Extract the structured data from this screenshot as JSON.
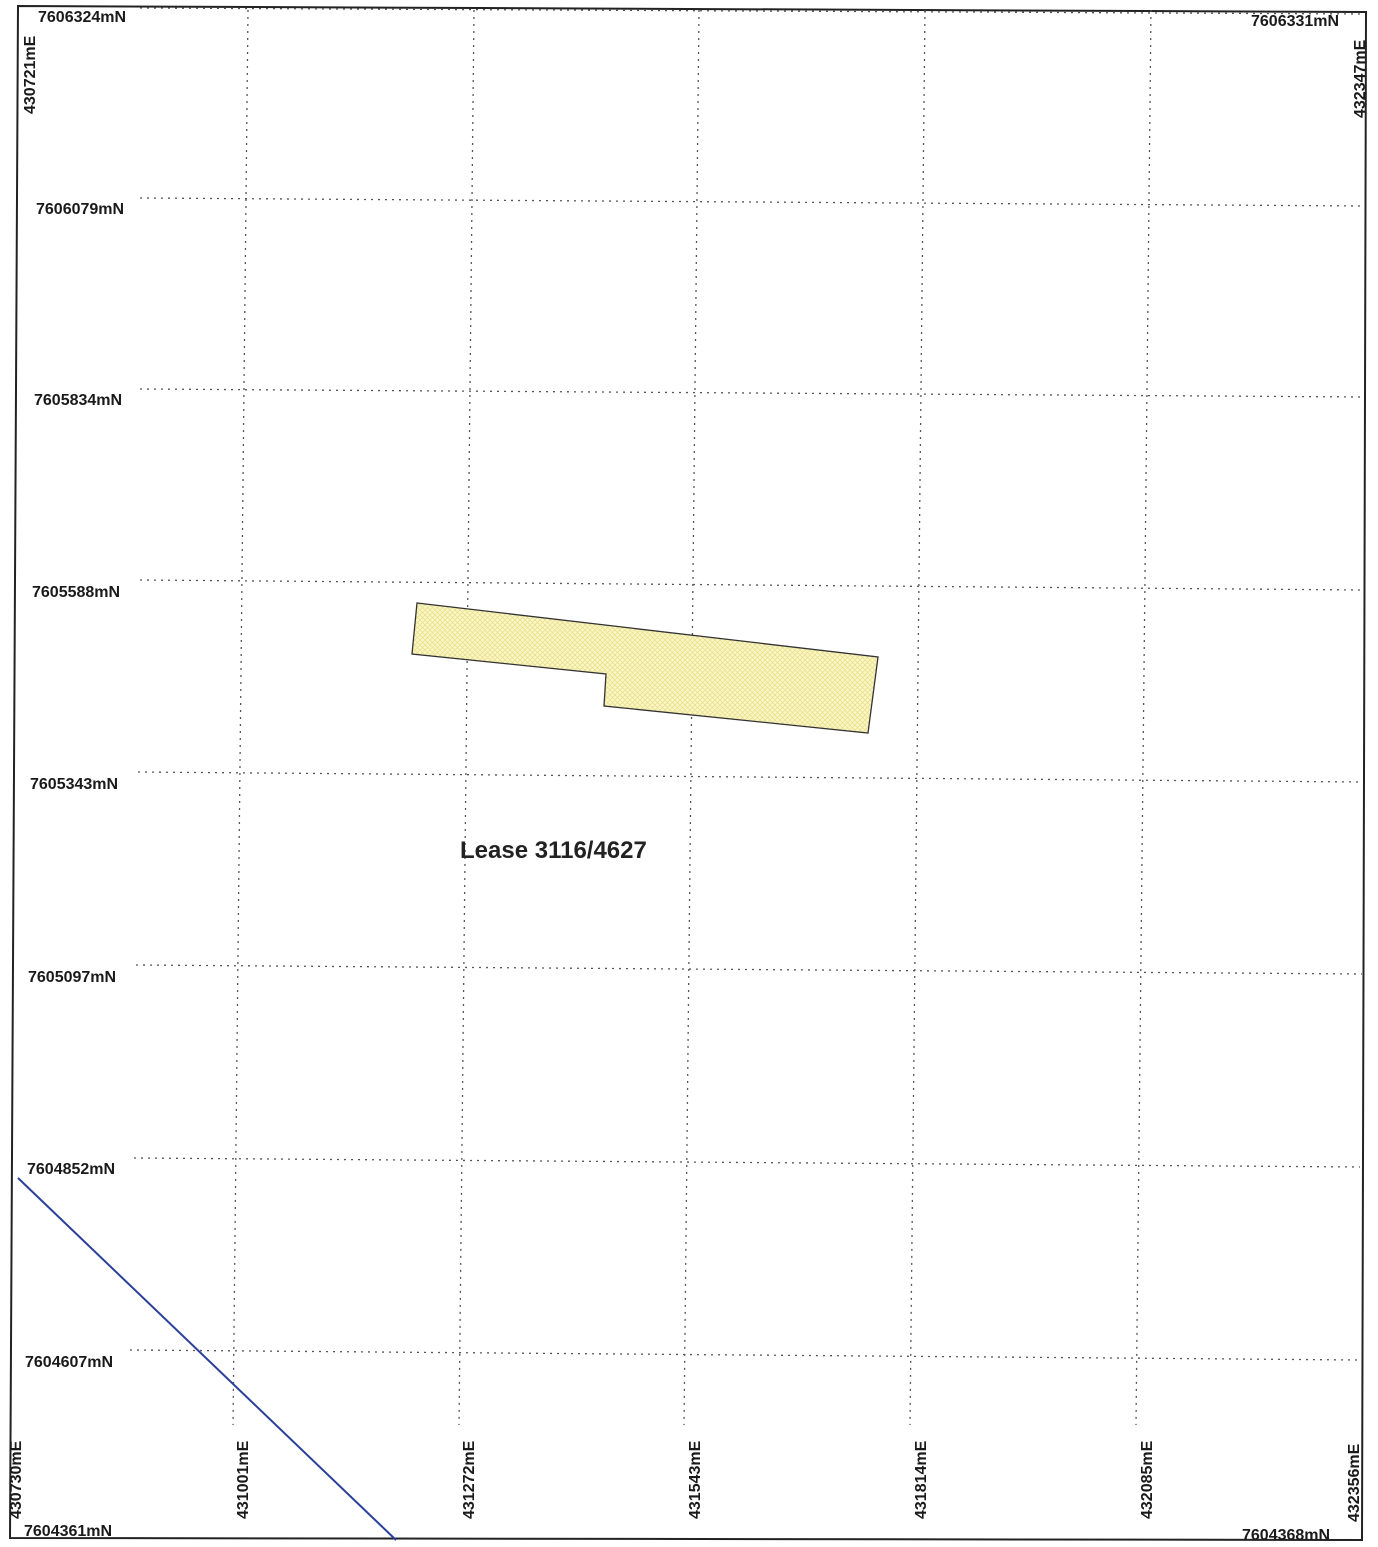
{
  "map": {
    "corner_labels": {
      "top_left_north": "7606324mN",
      "top_right_north": "7606331mN",
      "top_left_east": "430721mE",
      "top_right_east": "432347mE",
      "bottom_left_east": "430730mE",
      "bottom_right_east": "432356mE",
      "bottom_left_north": "7604361mN",
      "bottom_right_north": "7604368mN"
    },
    "northing_labels": [
      "7606079mN",
      "7605834mN",
      "7605588mN",
      "7605343mN",
      "7605097mN",
      "7604852mN",
      "7604607mN"
    ],
    "easting_labels": [
      "431001mE",
      "431272mE",
      "431543mE",
      "431814mE",
      "432085mE"
    ],
    "lease_label": "Lease 3116/4627",
    "colors": {
      "border": "#222222",
      "grid": "#555555",
      "lease_fill": "#fbf7c4",
      "lease_hatch": "#e8dd8a",
      "lease_outline": "#333333",
      "boundary_line": "#2a3f9a"
    }
  }
}
